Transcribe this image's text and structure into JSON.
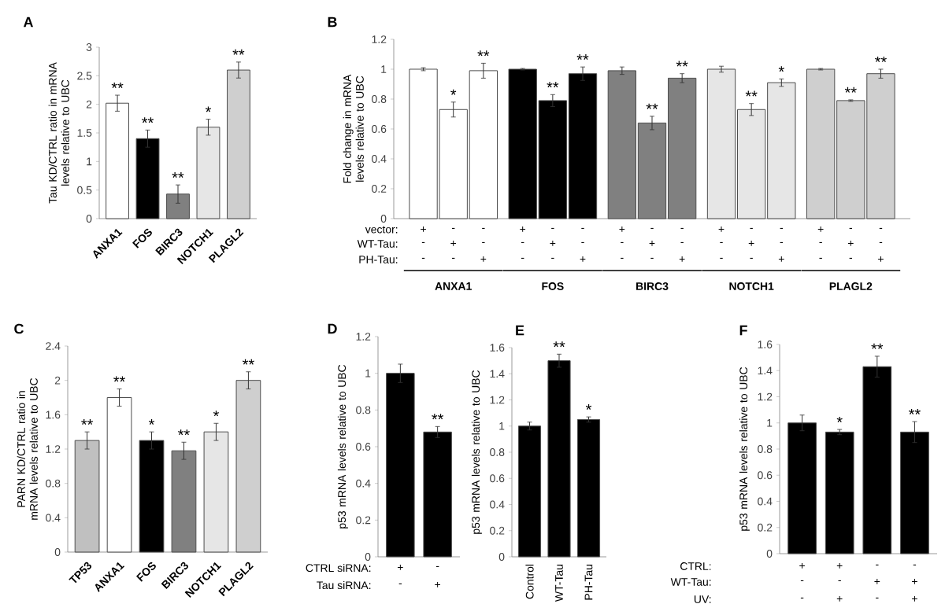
{
  "chart_data": [
    {
      "type": "bar",
      "title": "A",
      "ylabel": "Tau KD/CTRL ratio in mRNA levels relative to UBC",
      "categories": [
        "ANXA1",
        "FOS",
        "BIRC3",
        "NOTCH1",
        "PLAGL2"
      ],
      "values": [
        2.02,
        1.4,
        0.43,
        1.6,
        2.6
      ],
      "colors": [
        "#ffffff",
        "#000000",
        "#808080",
        "#e6e6e6",
        "#cfcfcf"
      ],
      "errors": [
        0.14,
        0.15,
        0.16,
        0.14,
        0.14
      ],
      "value_labels": [
        "**",
        "**",
        "**",
        "*",
        "**"
      ],
      "ylim": [
        0,
        3
      ],
      "yticks": [
        0,
        0.5,
        1,
        1.5,
        2,
        2.5,
        3
      ]
    },
    {
      "type": "bar",
      "title": "B",
      "ylabel": "Fold change in mRNA levels relative to UBC",
      "categories": [
        "ANXA1",
        "FOS",
        "BIRC3",
        "NOTCH1",
        "PLAGL2"
      ],
      "series": [
        {
          "values": [
            1.0,
            1.0,
            0.99,
            1.0,
            1.0
          ],
          "colors": [
            "#ffffff",
            "#000000",
            "#808080",
            "#e6e6e6",
            "#cfcfcf"
          ],
          "errors": [
            0.01,
            0.005,
            0.025,
            0.02,
            0.005
          ],
          "value_labels": [
            null,
            null,
            null,
            null,
            null
          ]
        },
        {
          "values": [
            0.73,
            0.79,
            0.64,
            0.73,
            0.79
          ],
          "colors": [
            "#ffffff",
            "#000000",
            "#808080",
            "#e6e6e6",
            "#cfcfcf"
          ],
          "errors": [
            0.05,
            0.04,
            0.045,
            0.04,
            0.005
          ],
          "value_labels": [
            "*",
            "**",
            "**",
            "**",
            "**"
          ]
        },
        {
          "values": [
            0.99,
            0.97,
            0.94,
            0.91,
            0.97
          ],
          "colors": [
            "#ffffff",
            "#000000",
            "#808080",
            "#e6e6e6",
            "#cfcfcf"
          ],
          "errors": [
            0.05,
            0.045,
            0.03,
            0.025,
            0.03
          ],
          "value_labels": [
            "**",
            "**",
            "**",
            "*",
            "**"
          ]
        }
      ],
      "annotations": [
        "vector:",
        "WT-Tau:",
        "PH-Tau:",
        "+",
        "-",
        "-",
        "+",
        "-",
        "-",
        "+",
        "-",
        "-",
        "+",
        "-",
        "-",
        "+",
        "-",
        "-",
        "-",
        "+",
        "-",
        "-",
        "+",
        "-",
        "-",
        "+",
        "-",
        "-",
        "+",
        "-",
        "-",
        "+",
        "-",
        "-",
        "-",
        "+",
        "-",
        "-",
        "+",
        "-",
        "-",
        "+",
        "-",
        "-",
        "+",
        "-",
        "-",
        "+"
      ],
      "ylim": [
        0,
        1.2
      ],
      "yticks": [
        0,
        0.2,
        0.4,
        0.6,
        0.8,
        1,
        1.2
      ]
    },
    {
      "type": "bar",
      "title": "C",
      "ylabel": "PARN KD/CTRL ratio in mRNA levels relative to UBC",
      "categories": [
        "TP53",
        "ANXA1",
        "FOS",
        "BIRC3",
        "NOTCH1",
        "PLAGL2"
      ],
      "values": [
        1.3,
        1.8,
        1.3,
        1.18,
        1.4,
        2.0
      ],
      "colors": [
        "#c0c0c0",
        "#ffffff",
        "#000000",
        "#808080",
        "#e6e6e6",
        "#cfcfcf"
      ],
      "errors": [
        0.1,
        0.1,
        0.1,
        0.1,
        0.1,
        0.1
      ],
      "value_labels": [
        "**",
        "**",
        "*",
        "**",
        "*",
        "**"
      ],
      "ylim": [
        0,
        2.4
      ],
      "yticks": [
        0,
        0.4,
        0.8,
        1.2,
        1.6,
        2,
        2.4
      ]
    },
    {
      "type": "bar",
      "title": "D",
      "ylabel": "p53 mRNA levels relative to UBC",
      "categories": [
        null,
        null
      ],
      "values": [
        1.0,
        0.68
      ],
      "colors": [
        "#000000",
        "#000000"
      ],
      "errors": [
        0.05,
        0.03
      ],
      "value_labels": [
        null,
        "**"
      ],
      "annotations": [
        "CTRL siRNA:",
        "Tau siRNA:",
        "+",
        "-",
        "-",
        "+"
      ],
      "ylim": [
        0,
        1.2
      ],
      "yticks": [
        0,
        0.2,
        0.4,
        0.6,
        0.8,
        1,
        1.2
      ]
    },
    {
      "type": "bar",
      "title": "E",
      "ylabel": "p53 mRNA levels relative to UBC",
      "categories": [
        "Control",
        "WT-Tau",
        "PH-Tau"
      ],
      "values": [
        1.0,
        1.5,
        1.05
      ],
      "colors": [
        "#000000",
        "#000000",
        "#000000"
      ],
      "errors": [
        0.03,
        0.05,
        0.02
      ],
      "value_labels": [
        null,
        "**",
        "*"
      ],
      "ylim": [
        0,
        1.6
      ],
      "yticks": [
        0,
        0.2,
        0.4,
        0.6,
        0.8,
        1,
        1.2,
        1.4,
        1.6
      ]
    },
    {
      "type": "bar",
      "title": "F",
      "ylabel": "p53 mRNA levels relative to UBC",
      "categories": [
        null,
        null,
        null,
        null
      ],
      "values": [
        1.0,
        0.93,
        1.43,
        0.93
      ],
      "colors": [
        "#000000",
        "#000000",
        "#000000",
        "#000000"
      ],
      "errors": [
        0.06,
        0.02,
        0.08,
        0.08
      ],
      "value_labels": [
        null,
        "*",
        "**",
        "**"
      ],
      "annotations": [
        "CTRL:",
        "WT-Tau:",
        "UV:",
        "+",
        "+",
        "-",
        "-",
        "-",
        "-",
        "+",
        "+",
        "-",
        "+",
        "-",
        "+"
      ],
      "ylim": [
        0,
        1.6
      ],
      "yticks": [
        0,
        0.2,
        0.4,
        0.6,
        0.8,
        1,
        1.2,
        1.4,
        1.6
      ]
    }
  ]
}
